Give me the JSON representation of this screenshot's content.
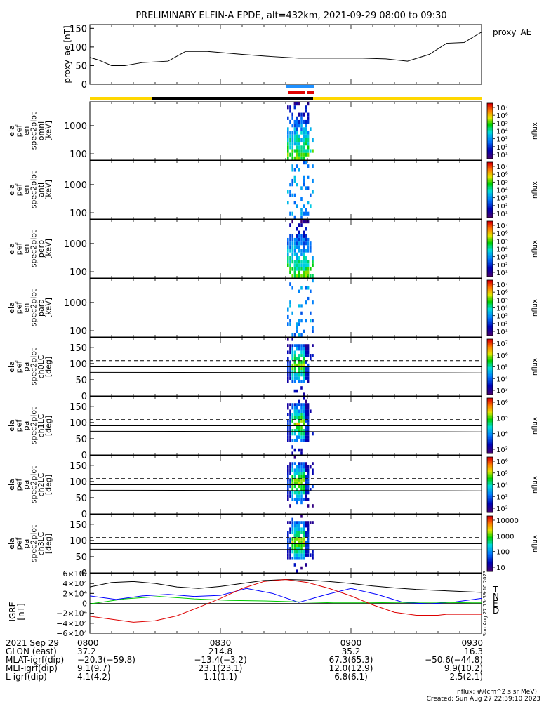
{
  "title": "PRELIMINARY ELFIN-A EPDE, alt=432km, 2021-09-29 08:00 to 09:30",
  "footer": {
    "units": "nflux: #/(cm^2 s sr MeV)",
    "created": "Created: Sun Aug 27 22:39:10 2023"
  },
  "colors": {
    "ae_line": "#000000",
    "sci_blue": "#1e90ff",
    "sci_red": "#e00000",
    "orbit_yellow": "#ffd700",
    "orbit_black": "#000000",
    "grf_t": "#000000",
    "grf_n": "#0000ff",
    "grf_e": "#00cc00",
    "grf_d": "#dd0000"
  },
  "chart_data": [
    {
      "id": "proxy_ae",
      "type": "line",
      "ylabel": "proxy_ae [nT]",
      "legend": "proxy_AE",
      "ylim": [
        0,
        160
      ],
      "yticks": [
        "0",
        "50",
        "100",
        "150"
      ],
      "x": [
        "08:00",
        "08:02",
        "08:05",
        "08:08",
        "08:12",
        "08:18",
        "08:22",
        "08:27",
        "08:35",
        "08:42",
        "08:48",
        "08:55",
        "09:02",
        "09:08",
        "09:13",
        "09:18",
        "09:22",
        "09:26",
        "09:30"
      ],
      "values": [
        72,
        65,
        50,
        50,
        58,
        62,
        88,
        88,
        80,
        74,
        70,
        70,
        70,
        68,
        62,
        80,
        110,
        112,
        140
      ]
    },
    {
      "id": "elb_omni",
      "type": "heatmap",
      "ylabel": [
        "ela",
        "pef",
        "en",
        "spec2plot",
        "omni",
        "[keV]"
      ],
      "ytick_labels": [
        "100",
        "1000"
      ],
      "yscale": "log",
      "ylim": [
        60,
        7000
      ],
      "colorbar": {
        "label": "nflux",
        "ticks": [
          "10¹",
          "10²",
          "10³",
          "10⁴",
          "10⁵",
          "10⁶",
          "10⁷"
        ]
      }
    },
    {
      "id": "elb_anti",
      "type": "heatmap",
      "ylabel": [
        "ela",
        "pef",
        "en",
        "spec2plot",
        "anti",
        "[keV]"
      ],
      "ytick_labels": [
        "100",
        "1000"
      ],
      "yscale": "log",
      "ylim": [
        60,
        7000
      ],
      "colorbar": {
        "label": "nflux",
        "ticks": [
          "10¹",
          "10²",
          "10³",
          "10⁴",
          "10⁵",
          "10⁶",
          "10⁷"
        ]
      }
    },
    {
      "id": "elb_perp",
      "type": "heatmap",
      "ylabel": [
        "ela",
        "pef",
        "en",
        "spec2plot",
        "perp",
        "[keV]"
      ],
      "ytick_labels": [
        "100",
        "1000"
      ],
      "yscale": "log",
      "ylim": [
        60,
        7000
      ],
      "colorbar": {
        "label": "nflux",
        "ticks": [
          "10¹",
          "10²",
          "10³",
          "10⁴",
          "10⁵",
          "10⁶",
          "10⁷"
        ]
      }
    },
    {
      "id": "elb_para",
      "type": "heatmap",
      "ylabel": [
        "ela",
        "pef",
        "en",
        "spec2plot",
        "para",
        "[keV]"
      ],
      "ytick_labels": [
        "100",
        "1000"
      ],
      "yscale": "log",
      "ylim": [
        60,
        7000
      ],
      "colorbar": {
        "label": "nflux",
        "ticks": [
          "10¹",
          "10²",
          "10³",
          "10⁴",
          "10⁵",
          "10⁶",
          "10⁷"
        ]
      }
    },
    {
      "id": "pa_ch0",
      "type": "heatmap",
      "ylabel": [
        "ela",
        "pef",
        "pa",
        "spec2plot",
        "ch0LC",
        "[deg]"
      ],
      "ytick_labels": [
        "0",
        "50",
        "100",
        "150"
      ],
      "ylim": [
        0,
        180
      ],
      "colorbar": {
        "label": "nflux",
        "ticks": [
          "10³",
          "10⁴",
          "10⁵",
          "10⁶",
          "10⁷"
        ]
      }
    },
    {
      "id": "pa_ch1",
      "type": "heatmap",
      "ylabel": [
        "ela",
        "pef",
        "pa",
        "spec2plot",
        "ch1LC",
        "[deg]"
      ],
      "ytick_labels": [
        "0",
        "50",
        "100",
        "150"
      ],
      "ylim": [
        0,
        180
      ],
      "colorbar": {
        "label": "nflux",
        "ticks": [
          "10³",
          "10⁴",
          "10⁵",
          "10⁶"
        ]
      }
    },
    {
      "id": "pa_ch2",
      "type": "heatmap",
      "ylabel": [
        "ela",
        "pef",
        "pa",
        "spec2plot",
        "ch2LC",
        "[deg]"
      ],
      "ytick_labels": [
        "0",
        "50",
        "100",
        "150"
      ],
      "ylim": [
        0,
        180
      ],
      "colorbar": {
        "label": "nflux",
        "ticks": [
          "10²",
          "10³",
          "10⁴",
          "10⁵",
          "10⁶"
        ]
      }
    },
    {
      "id": "pa_ch3",
      "type": "heatmap",
      "ylabel": [
        "ela",
        "pef",
        "pa",
        "spec2plot",
        "ch3LC",
        "[deg]"
      ],
      "ytick_labels": [
        "0",
        "50",
        "100",
        "150"
      ],
      "ylim": [
        0,
        180
      ],
      "colorbar": {
        "label": "nflux",
        "ticks": [
          "10",
          "100",
          "1000",
          "10000"
        ]
      }
    },
    {
      "id": "igrf",
      "type": "line",
      "ylabel": [
        "IGRF",
        "[nT]"
      ],
      "ytick_labels": [
        "−6×10⁴",
        "−4×10⁴",
        "−2×10⁴",
        "0",
        "2×10⁴",
        "4×10⁴",
        "6×10⁴"
      ],
      "ylim": [
        -60000,
        60000
      ],
      "side_label": "Sun Aug 27 15:39:10 2023",
      "series": [
        {
          "name": "T",
          "color": "#000000",
          "x": [
            0,
            5,
            10,
            15,
            20,
            25,
            30,
            35,
            40,
            45,
            50,
            55,
            60,
            65,
            70,
            75,
            80,
            85,
            90
          ],
          "values": [
            33000,
            42000,
            44000,
            40000,
            33000,
            30000,
            34000,
            40000,
            46000,
            48000,
            47000,
            44000,
            40000,
            35000,
            31000,
            28000,
            26000,
            24000,
            22000
          ]
        },
        {
          "name": "N",
          "color": "#0000ff",
          "x": [
            0,
            6,
            12,
            18,
            24,
            30,
            36,
            42,
            48,
            54,
            60,
            66,
            72,
            78,
            84,
            90
          ],
          "values": [
            15000,
            8000,
            15000,
            18000,
            14000,
            16000,
            30000,
            20000,
            2000,
            17000,
            30000,
            18000,
            2000,
            -1000,
            3000,
            10000
          ]
        },
        {
          "name": "E",
          "color": "#00cc00",
          "x": [
            0,
            8,
            16,
            24,
            32,
            40,
            48,
            56,
            64,
            72,
            80,
            88,
            90
          ],
          "values": [
            -1000,
            9000,
            14000,
            9000,
            6000,
            5000,
            3000,
            1000,
            1000,
            2000,
            2000,
            1000,
            1000
          ]
        },
        {
          "name": "D",
          "color": "#dd0000",
          "x": [
            0,
            5,
            10,
            15,
            20,
            25,
            30,
            35,
            40,
            45,
            50,
            55,
            60,
            65,
            70,
            75,
            80,
            82,
            85,
            90
          ],
          "values": [
            -26000,
            -32000,
            -38000,
            -35000,
            -25000,
            -8000,
            10000,
            30000,
            44000,
            48000,
            42000,
            30000,
            15000,
            -3000,
            -18000,
            -24000,
            -24000,
            -22000,
            -22000,
            -22000
          ]
        }
      ]
    }
  ],
  "xaxis": {
    "tick_labels": [
      "0800",
      "0830",
      "0900",
      "0930"
    ],
    "rows": [
      {
        "label": "2021 Sep 29",
        "vals": [
          "0800",
          "0830",
          "0900",
          "0930"
        ]
      },
      {
        "label": "GLON (east)",
        "vals": [
          "37.2",
          "214.8",
          "35.2",
          "16.3"
        ]
      },
      {
        "label": "MLAT-igrf(dip)",
        "vals": [
          "−20.3(−59.8)",
          "−13.4(−3.2)",
          "67.3(65.3)",
          "−50.6(−44.8)"
        ]
      },
      {
        "label": "MLT-igrf(dip)",
        "vals": [
          "9.1(9.7)",
          "23.1(23.1)",
          "12.0(12.9)",
          "9.9(10.2)"
        ]
      },
      {
        "label": "L-igrf(dip)",
        "vals": [
          "4.1(4.2)",
          "1.1(1.1)",
          "6.8(6.1)",
          "2.5(2.1)"
        ]
      }
    ]
  }
}
